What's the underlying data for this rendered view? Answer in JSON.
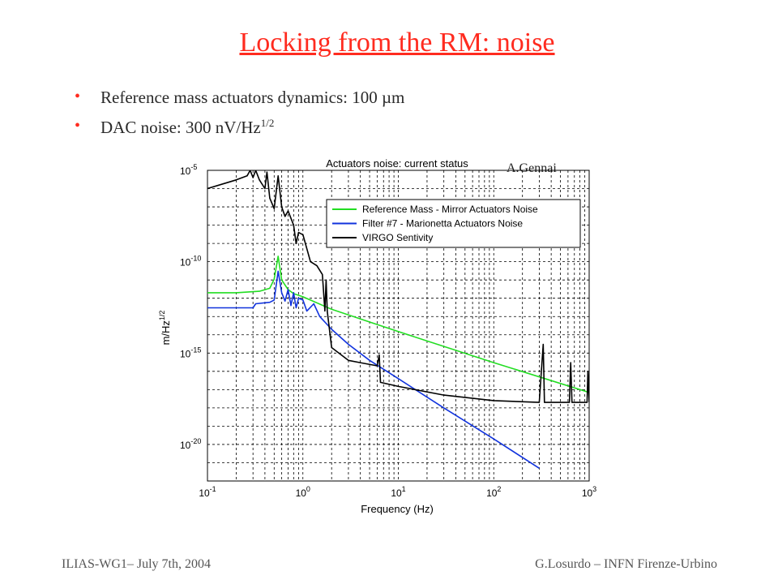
{
  "slide": {
    "title": "Locking from the RM: noise",
    "bullets": [
      {
        "text": "Reference mass actuators dynamics: 100 µm"
      },
      {
        "text": "DAC noise: 300 nV/Hz",
        "sup": "1/2"
      }
    ],
    "credit": "A.Gennai",
    "footer_left": "ILIAS-WG1– July 7th, 2004",
    "footer_right": "G.Losurdo – INFN Firenze-Urbino"
  },
  "chart_data": {
    "type": "line",
    "title": "Actuators noise: current status",
    "xlabel": "Frequency (Hz)",
    "ylabel": "m/Hz",
    "ylabel_sup": "1/2",
    "xscale": "log",
    "yscale": "log",
    "xlim": [
      0.1,
      1000
    ],
    "ylim": [
      1e-22,
      1e-05
    ],
    "grid": true,
    "legend_position": "top-right",
    "x_ticks": [
      {
        "base": "10",
        "exp": "-1"
      },
      {
        "base": "10",
        "exp": "0"
      },
      {
        "base": "10",
        "exp": "1"
      },
      {
        "base": "10",
        "exp": "2"
      },
      {
        "base": "10",
        "exp": "3"
      }
    ],
    "y_ticks": [
      {
        "base": "10",
        "exp": "-5"
      },
      {
        "base": "10",
        "exp": "-10"
      },
      {
        "base": "10",
        "exp": "-15"
      },
      {
        "base": "10",
        "exp": "-20"
      }
    ],
    "series": [
      {
        "name": "Reference Mass - Mirror Actuators Noise",
        "color": "#22dd22",
        "points": [
          [
            0.1,
            2e-12
          ],
          [
            0.2,
            2e-12
          ],
          [
            0.35,
            2.4e-12
          ],
          [
            0.45,
            3.5e-12
          ],
          [
            0.5,
            1.1e-11
          ],
          [
            0.55,
            2e-10
          ],
          [
            0.6,
            1e-11
          ],
          [
            0.7,
            3e-12
          ],
          [
            0.8,
            1.8e-12
          ],
          [
            1,
            1.2e-12
          ],
          [
            2,
            2.5e-13
          ],
          [
            5,
            5e-14
          ],
          [
            10,
            1.5e-14
          ],
          [
            100,
            3e-16
          ],
          [
            1000,
            7e-18
          ]
        ]
      },
      {
        "name": "Filter #7 - Marionetta Actuators Noise",
        "color": "#1133dd",
        "points": [
          [
            0.1,
            3e-13
          ],
          [
            0.3,
            3e-13
          ],
          [
            0.32,
            5e-13
          ],
          [
            0.45,
            6e-13
          ],
          [
            0.5,
            8e-13
          ],
          [
            0.55,
            3e-11
          ],
          [
            0.6,
            2e-12
          ],
          [
            0.65,
            7e-13
          ],
          [
            0.7,
            3e-12
          ],
          [
            0.75,
            4e-13
          ],
          [
            0.8,
            2e-12
          ],
          [
            0.85,
            3e-13
          ],
          [
            0.9,
            1e-12
          ],
          [
            1,
            8e-13
          ],
          [
            1.1,
            2e-13
          ],
          [
            1.3,
            5e-13
          ],
          [
            1.5,
            1e-13
          ],
          [
            2,
            2e-14
          ],
          [
            3,
            3e-15
          ],
          [
            5,
            4e-16
          ],
          [
            10,
            4e-17
          ],
          [
            30,
            1e-18
          ],
          [
            100,
            2e-20
          ],
          [
            300,
            5e-22
          ]
        ]
      },
      {
        "name": "VIRGO Sentivity",
        "color": "#000000",
        "points": [
          [
            0.1,
            1e-06
          ],
          [
            0.2,
            3e-06
          ],
          [
            0.26,
            5e-06
          ],
          [
            0.28,
            1e-05
          ],
          [
            0.3,
            4e-06
          ],
          [
            0.32,
            1e-05
          ],
          [
            0.35,
            3e-06
          ],
          [
            0.4,
            1e-06
          ],
          [
            0.42,
            8e-06
          ],
          [
            0.45,
            3e-07
          ],
          [
            0.5,
            8e-08
          ],
          [
            0.55,
            5e-06
          ],
          [
            0.6,
            1e-07
          ],
          [
            0.65,
            3e-08
          ],
          [
            0.7,
            6e-08
          ],
          [
            0.8,
            1e-08
          ],
          [
            0.85,
            1e-09
          ],
          [
            0.9,
            4e-09
          ],
          [
            1,
            3e-09
          ],
          [
            1.2,
            1e-10
          ],
          [
            1.4,
            6e-11
          ],
          [
            1.6,
            2e-11
          ],
          [
            1.7,
            2e-13
          ],
          [
            1.75,
            1e-11
          ],
          [
            1.8,
            2e-13
          ],
          [
            2,
            2e-15
          ],
          [
            3,
            4e-16
          ],
          [
            4,
            3e-16
          ],
          [
            6,
            2e-16
          ],
          [
            6.3,
            8e-16
          ],
          [
            6.5,
            2.5e-17
          ],
          [
            10,
            1.5e-17
          ],
          [
            30,
            5e-18
          ],
          [
            100,
            2.5e-18
          ],
          [
            300,
            2e-18
          ],
          [
            330,
            3e-15
          ],
          [
            340,
            2e-18
          ],
          [
            620,
            2e-18
          ],
          [
            640,
            3e-16
          ],
          [
            660,
            2e-18
          ],
          [
            950,
            2e-18
          ],
          [
            970,
            1e-16
          ],
          [
            1000,
            2e-18
          ]
        ]
      }
    ]
  }
}
